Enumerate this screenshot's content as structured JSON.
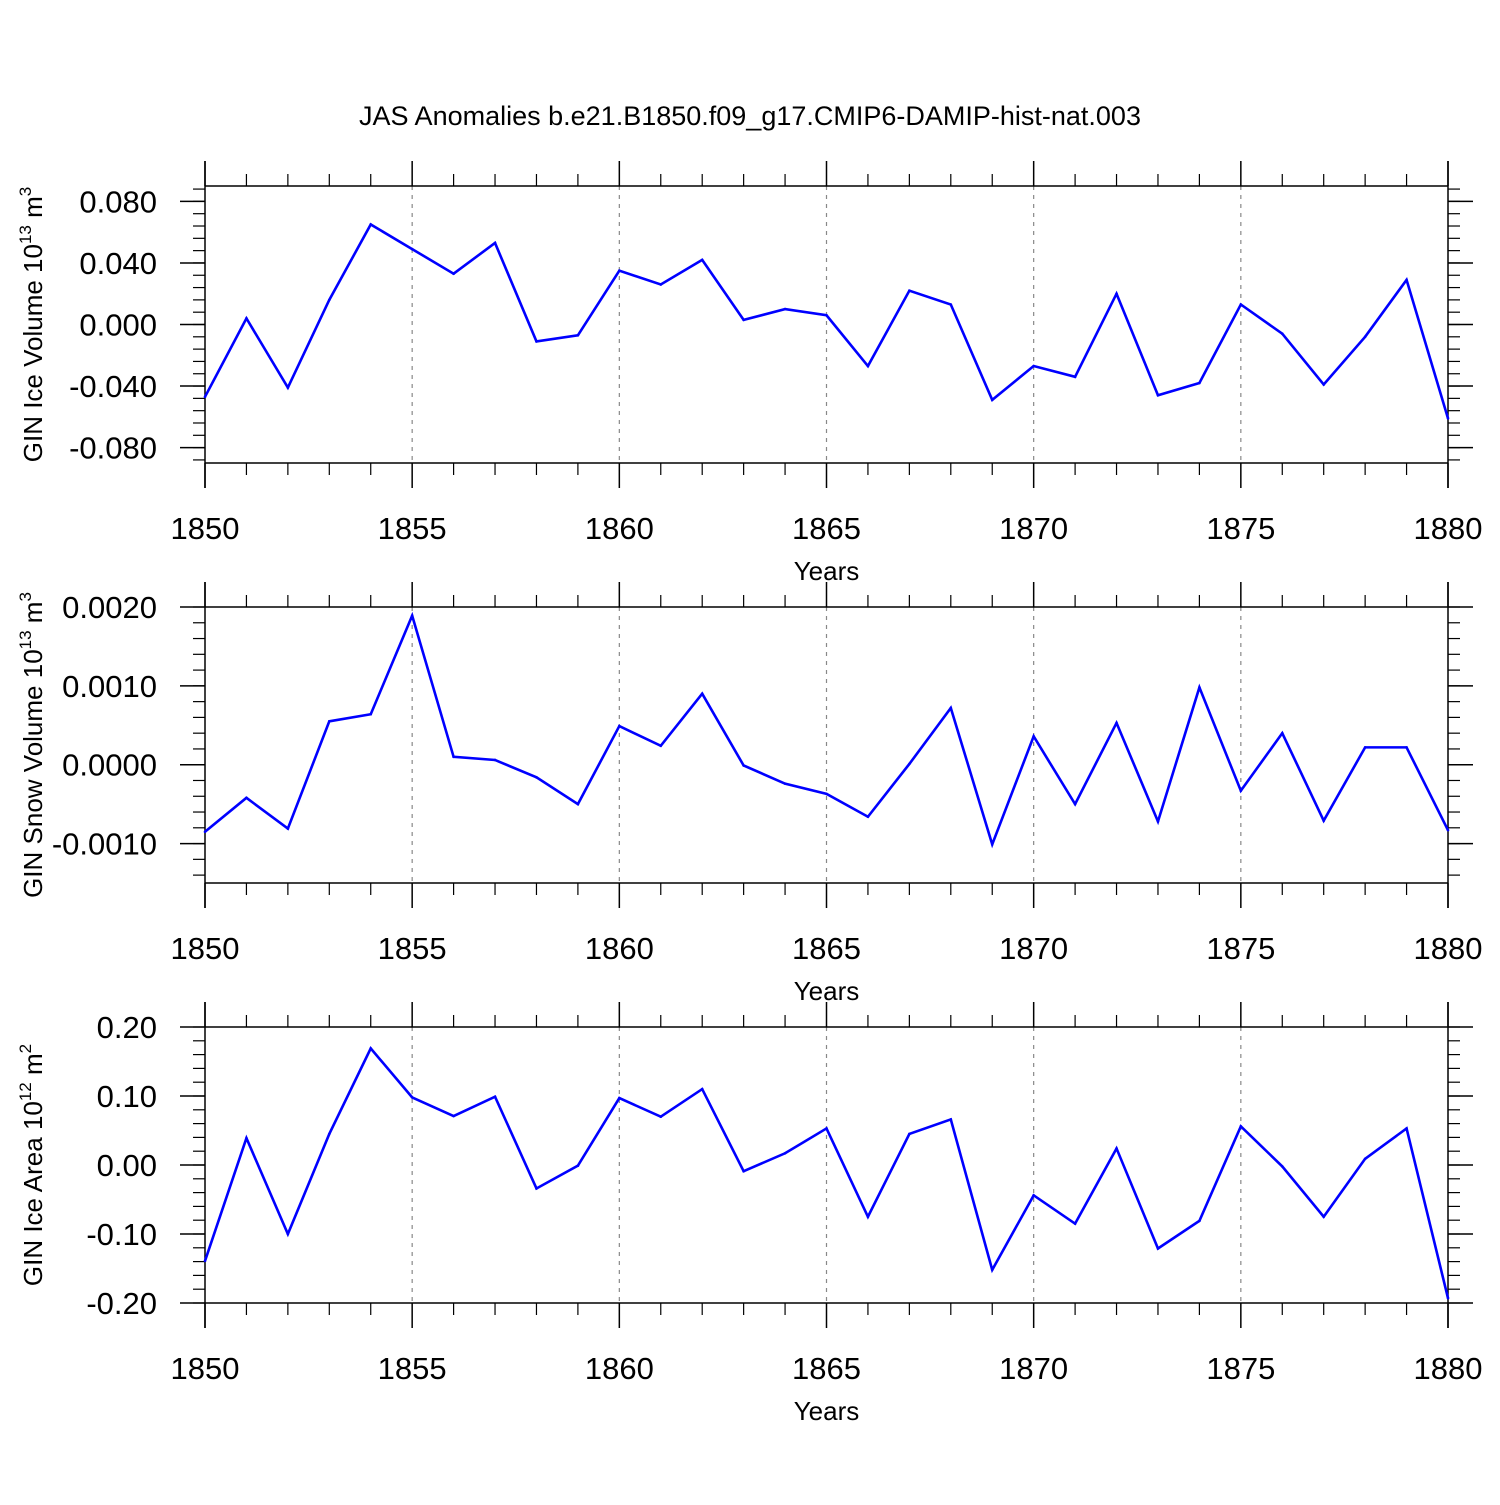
{
  "title": "JAS Anomalies b.e21.B1850.f09_g17.CMIP6-DAMIP-hist-nat.003",
  "colors": {
    "line": "#0000ff",
    "axis": "#000000",
    "grid": "#888888"
  },
  "chart_data": [
    {
      "type": "line",
      "ylabel_prefix": "GIN Ice Volume 10",
      "ylabel_exp": "13",
      "ylabel_unit": " m",
      "ylabel_unit_exp": "3",
      "xlabel": "Years",
      "xlim": [
        1850,
        1880
      ],
      "ylim": [
        -0.09,
        0.09
      ],
      "x_ticks": [
        1850,
        1855,
        1860,
        1865,
        1870,
        1875,
        1880
      ],
      "x_tick_labels": [
        "1850",
        "1855",
        "1860",
        "1865",
        "1870",
        "1875",
        "1880"
      ],
      "y_ticks": [
        -0.08,
        -0.04,
        0.0,
        0.04,
        0.08
      ],
      "y_tick_labels": [
        "-0.080",
        "-0.040",
        "0.000",
        "0.040",
        "0.080"
      ],
      "y_minor_step": 0.008,
      "grid_x": [
        1855,
        1860,
        1865,
        1870,
        1875
      ],
      "x": [
        1850,
        1851,
        1852,
        1853,
        1854,
        1855,
        1856,
        1857,
        1858,
        1859,
        1860,
        1861,
        1862,
        1863,
        1864,
        1865,
        1866,
        1867,
        1868,
        1869,
        1870,
        1871,
        1872,
        1873,
        1874,
        1875,
        1876,
        1877,
        1878,
        1879,
        1880
      ],
      "values": [
        -0.047,
        0.004,
        -0.041,
        0.016,
        0.065,
        0.049,
        0.033,
        0.053,
        -0.011,
        -0.007,
        0.035,
        0.026,
        0.042,
        0.003,
        0.01,
        0.006,
        -0.027,
        0.022,
        0.013,
        -0.049,
        -0.027,
        -0.034,
        0.02,
        -0.046,
        -0.038,
        0.013,
        -0.006,
        -0.039,
        -0.008,
        0.029,
        -0.061
      ]
    },
    {
      "type": "line",
      "ylabel_prefix": "GIN Snow Volume 10",
      "ylabel_exp": "13",
      "ylabel_unit": " m",
      "ylabel_unit_exp": "3",
      "xlabel": "Years",
      "xlim": [
        1850,
        1880
      ],
      "ylim": [
        -0.0015,
        0.002
      ],
      "x_ticks": [
        1850,
        1855,
        1860,
        1865,
        1870,
        1875,
        1880
      ],
      "x_tick_labels": [
        "1850",
        "1855",
        "1860",
        "1865",
        "1870",
        "1875",
        "1880"
      ],
      "y_ticks": [
        -0.001,
        0.0,
        0.001,
        0.002
      ],
      "y_tick_labels": [
        "-0.0010",
        "0.0000",
        "0.0010",
        "0.0020"
      ],
      "y_minor_step": 0.0002,
      "grid_x": [
        1855,
        1860,
        1865,
        1870,
        1875
      ],
      "x": [
        1850,
        1851,
        1852,
        1853,
        1854,
        1855,
        1856,
        1857,
        1858,
        1859,
        1860,
        1861,
        1862,
        1863,
        1864,
        1865,
        1866,
        1867,
        1868,
        1869,
        1870,
        1871,
        1872,
        1873,
        1874,
        1875,
        1876,
        1877,
        1878,
        1879,
        1880
      ],
      "values": [
        -0.00085,
        -0.00042,
        -0.00081,
        0.00055,
        0.00064,
        0.00189,
        0.0001,
        6e-05,
        -0.00016,
        -0.0005,
        0.00049,
        0.00024,
        0.0009,
        -1e-05,
        -0.00024,
        -0.00037,
        -0.00066,
        1e-05,
        0.00072,
        -0.00101,
        0.00036,
        -0.0005,
        0.00053,
        -0.00072,
        0.00098,
        -0.00033,
        0.0004,
        -0.00071,
        0.00022,
        0.00022,
        -0.00083
      ]
    },
    {
      "type": "line",
      "ylabel_prefix": "GIN Ice Area 10",
      "ylabel_exp": "12",
      "ylabel_unit": " m",
      "ylabel_unit_exp": "2",
      "xlabel": "Years",
      "xlim": [
        1850,
        1880
      ],
      "ylim": [
        -0.2,
        0.2
      ],
      "x_ticks": [
        1850,
        1855,
        1860,
        1865,
        1870,
        1875,
        1880
      ],
      "x_tick_labels": [
        "1850",
        "1855",
        "1860",
        "1865",
        "1870",
        "1875",
        "1880"
      ],
      "y_ticks": [
        -0.2,
        -0.1,
        0.0,
        0.1,
        0.2
      ],
      "y_tick_labels": [
        "-0.20",
        "-0.10",
        "0.00",
        "0.10",
        "0.20"
      ],
      "y_minor_step": 0.02,
      "grid_x": [
        1855,
        1860,
        1865,
        1870,
        1875
      ],
      "x": [
        1850,
        1851,
        1852,
        1853,
        1854,
        1855,
        1856,
        1857,
        1858,
        1859,
        1860,
        1861,
        1862,
        1863,
        1864,
        1865,
        1866,
        1867,
        1868,
        1869,
        1870,
        1871,
        1872,
        1873,
        1874,
        1875,
        1876,
        1877,
        1878,
        1879,
        1880
      ],
      "values": [
        -0.139,
        0.039,
        -0.1,
        0.045,
        0.169,
        0.098,
        0.071,
        0.099,
        -0.034,
        -0.001,
        0.097,
        0.07,
        0.11,
        -0.009,
        0.017,
        0.053,
        -0.075,
        0.045,
        0.066,
        -0.152,
        -0.044,
        -0.085,
        0.024,
        -0.121,
        -0.081,
        0.056,
        -0.002,
        -0.075,
        0.009,
        0.053,
        -0.193
      ]
    }
  ]
}
